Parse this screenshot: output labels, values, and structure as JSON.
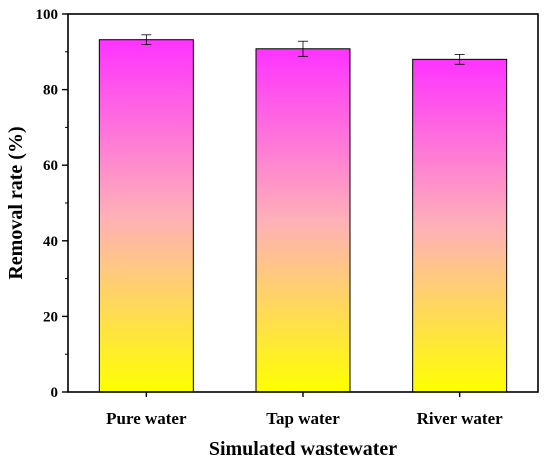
{
  "chart_data": {
    "type": "bar",
    "xlabel": "Simulated wastewater",
    "ylabel": "Removal rate (%)",
    "categories": [
      "Pure water",
      "Tap water",
      "River water"
    ],
    "values": [
      93.2,
      90.8,
      88.0
    ],
    "errors": [
      1.3,
      2.0,
      1.3
    ],
    "ylim": [
      0,
      100
    ],
    "yticks": [
      0,
      20,
      40,
      60,
      80,
      100
    ],
    "grid": false,
    "legend": "none",
    "bar_gradient": {
      "top": "#ff33ff",
      "middle": "#ffb0b8",
      "bottom": "#ffff00"
    }
  }
}
